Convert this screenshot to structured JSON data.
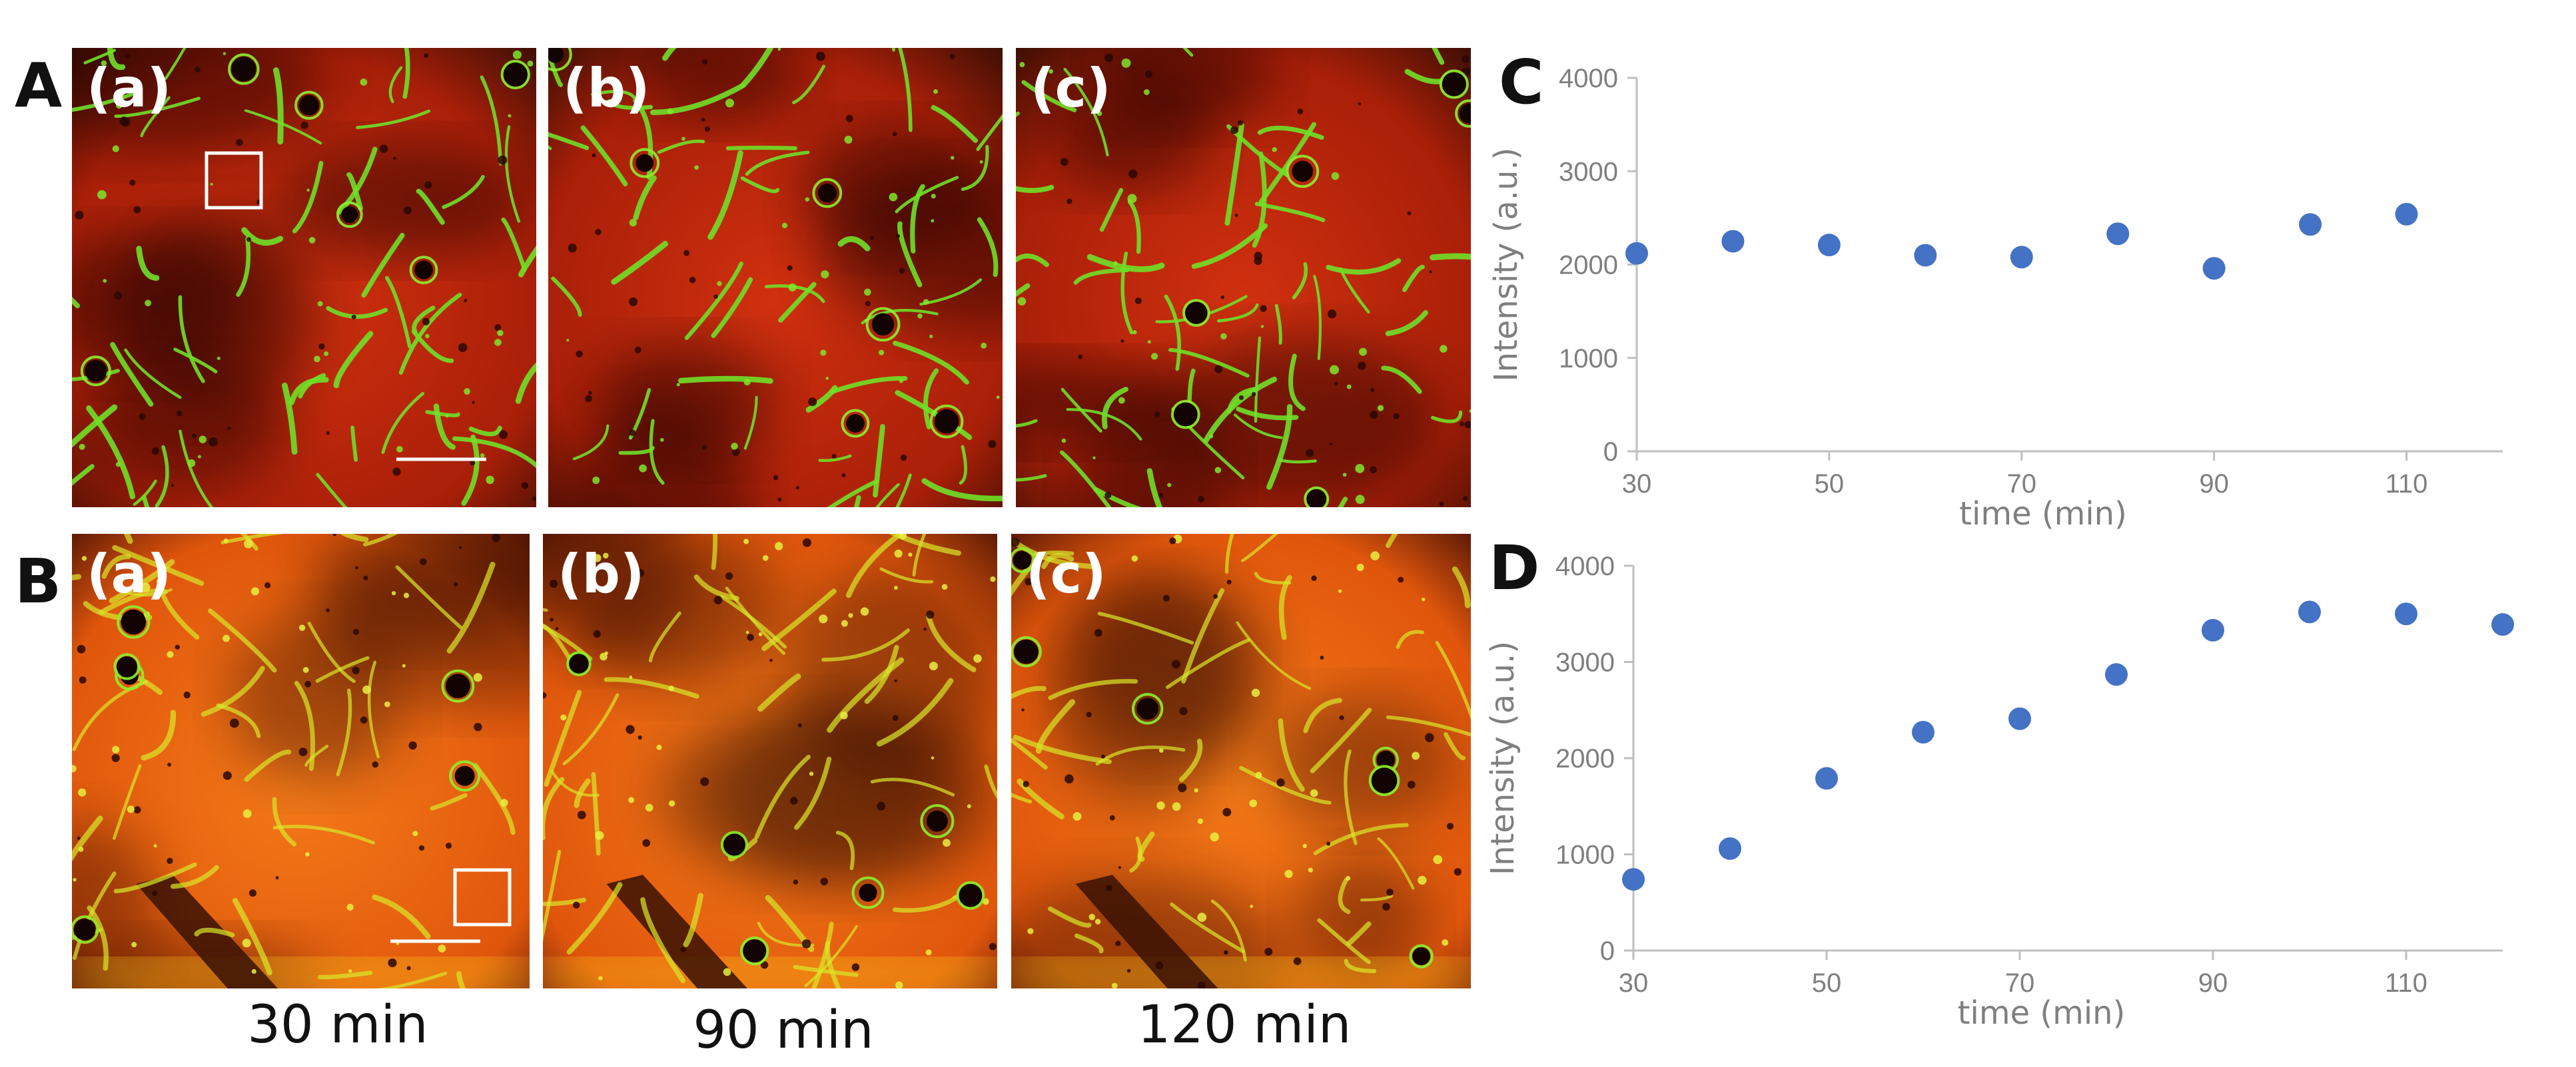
{
  "figure": {
    "rows": [
      {
        "id": "A",
        "label": "A",
        "panels": [
          {
            "label": "(a)",
            "tone": "deep",
            "roi": true,
            "scalebar": true
          },
          {
            "label": "(b)",
            "tone": "deep",
            "roi": false,
            "scalebar": false
          },
          {
            "label": "(c)",
            "tone": "deep",
            "roi": false,
            "scalebar": false
          }
        ]
      },
      {
        "id": "B",
        "label": "B",
        "panels": [
          {
            "label": "(a)",
            "tone": "bright",
            "roi": true,
            "scalebar": true
          },
          {
            "label": "(b)",
            "tone": "bright",
            "roi": false,
            "scalebar": false
          },
          {
            "label": "(c)",
            "tone": "bright",
            "roi": false,
            "scalebar": false
          }
        ]
      }
    ],
    "time_labels": [
      "30 min",
      "90 min",
      "120 min"
    ],
    "colors": {
      "tissue_deep": "#c8270c",
      "tissue_bright": "#ee6410",
      "vessel": "#7ee82a",
      "point": "#4472c4",
      "axis": "#bfbfbf",
      "tick_text": "#7f7f7f"
    }
  },
  "chart_data": [
    {
      "panel": "C",
      "type": "scatter",
      "title": "",
      "xlabel": "time (min)",
      "ylabel": "Intensity (a.u.)",
      "x": [
        30,
        40,
        50,
        60,
        70,
        80,
        90,
        100,
        110
      ],
      "y": [
        2120,
        2250,
        2210,
        2100,
        2080,
        2330,
        1960,
        2430,
        2540
      ],
      "xlim": [
        30,
        120
      ],
      "ylim": [
        0,
        4000
      ],
      "xticks": [
        30,
        50,
        70,
        90,
        110
      ],
      "yticks": [
        0,
        1000,
        2000,
        3000,
        4000
      ],
      "grid": false,
      "legend": "none"
    },
    {
      "panel": "D",
      "type": "scatter",
      "title": "",
      "xlabel": "time (min)",
      "ylabel": "Intensity (a.u.)",
      "x": [
        30,
        40,
        50,
        60,
        70,
        80,
        90,
        100,
        110,
        120
      ],
      "y": [
        740,
        1060,
        1790,
        2270,
        2410,
        2870,
        3330,
        3520,
        3500,
        3390
      ],
      "xlim": [
        30,
        120
      ],
      "ylim": [
        0,
        4000
      ],
      "xticks": [
        30,
        50,
        70,
        90,
        110
      ],
      "yticks": [
        0,
        1000,
        2000,
        3000,
        4000
      ],
      "grid": false,
      "legend": "none"
    }
  ]
}
